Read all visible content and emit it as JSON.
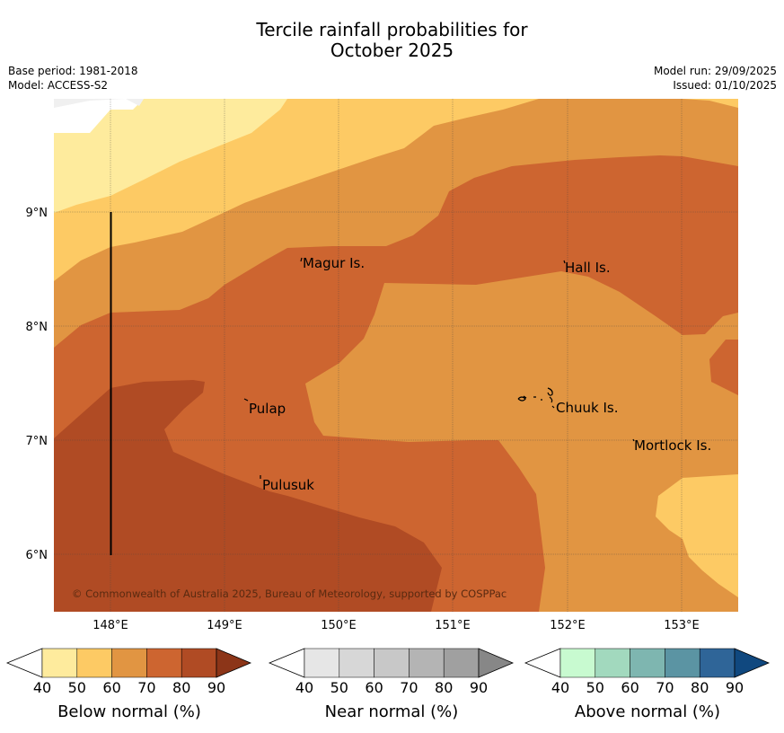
{
  "title_line1": "Tercile rainfall probabilities for",
  "title_line2": "October 2025",
  "base_period": "Base period: 1981-2018",
  "model": "Model: ACCESS-S2",
  "model_run": "Model run: 29/09/2025",
  "issued": "Issued: 01/10/2025",
  "copyright": "© Commonwealth of Australia 2025, Bureau of Meteorology, supported by COSPPac",
  "map": {
    "x_ticks": [
      "148°E",
      "149°E",
      "150°E",
      "151°E",
      "152°E",
      "153°E"
    ],
    "y_ticks": [
      "9°N",
      "8°N",
      "7°N",
      "6°N"
    ],
    "places": [
      "Magur Is.",
      "Hall Is.",
      "Pulap",
      "Chuuk Is.",
      "Mortlock Is.",
      "Pulusuk"
    ]
  },
  "colorbars": [
    {
      "label": "Below normal (%)",
      "ticks": [
        "40",
        "50",
        "60",
        "70",
        "80",
        "90"
      ],
      "colors": [
        "#ffffff",
        "#feeb9d",
        "#fdca64",
        "#e19542",
        "#cd6530",
        "#b04b24",
        "#8c3518"
      ]
    },
    {
      "label": "Near normal (%)",
      "ticks": [
        "40",
        "50",
        "60",
        "70",
        "80",
        "90"
      ],
      "colors": [
        "#ffffff",
        "#e6e6e6",
        "#d7d7d7",
        "#c8c8c8",
        "#b4b4b4",
        "#a0a0a0",
        "#878787"
      ]
    },
    {
      "label": "Above normal (%)",
      "ticks": [
        "40",
        "50",
        "60",
        "70",
        "80",
        "90"
      ],
      "colors": [
        "#ffffff",
        "#c8fad0",
        "#a2d9be",
        "#7eb6b0",
        "#5b94a3",
        "#2f6598",
        "#10487f"
      ]
    }
  ]
}
